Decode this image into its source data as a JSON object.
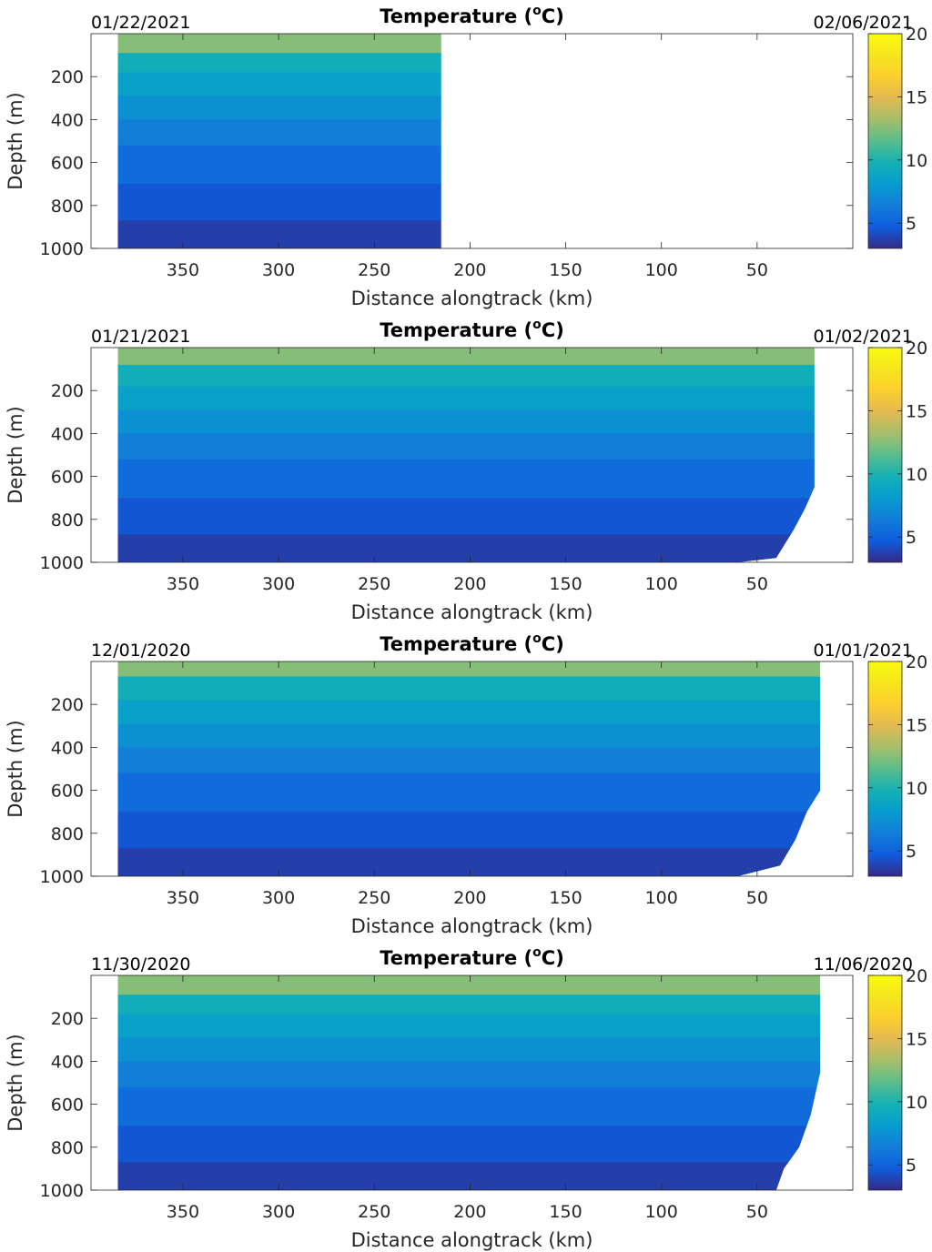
{
  "chart_data": [
    {
      "type": "heatmap",
      "title": "Temperature (°C)",
      "title_base": "Temperature (",
      "title_sup": "o",
      "title_tail": "C)",
      "xlabel": "Distance alongtrack (km)",
      "ylabel": "Depth (m)",
      "start_date": "01/22/2021",
      "end_date": "02/06/2021",
      "xlim": [
        398,
        0
      ],
      "x_reversed": true,
      "ylim": [
        0,
        1000
      ],
      "y_reversed": true,
      "xticks": [
        350,
        300,
        250,
        200,
        150,
        100,
        50
      ],
      "yticks": [
        200,
        400,
        600,
        800,
        1000
      ],
      "colorbar": {
        "min": 3,
        "max": 20,
        "ticks": [
          5,
          10,
          15,
          20
        ],
        "colormap": "parula"
      },
      "data_extent_km": [
        384,
        215
      ],
      "bottom_depth_m": [
        [
          384,
          1000
        ],
        [
          215,
          1000
        ]
      ],
      "layers": [
        {
          "top_m": 0,
          "bottom_m": 90,
          "temp_c": 12.5
        },
        {
          "top_m": 90,
          "bottom_m": 180,
          "temp_c": 9.5
        },
        {
          "top_m": 180,
          "bottom_m": 290,
          "temp_c": 8.5
        },
        {
          "top_m": 290,
          "bottom_m": 400,
          "temp_c": 7.5
        },
        {
          "top_m": 400,
          "bottom_m": 520,
          "temp_c": 6.5
        },
        {
          "top_m": 520,
          "bottom_m": 700,
          "temp_c": 5.5
        },
        {
          "top_m": 700,
          "bottom_m": 870,
          "temp_c": 4.5
        },
        {
          "top_m": 870,
          "bottom_m": 1000,
          "temp_c": 3.7
        }
      ]
    },
    {
      "type": "heatmap",
      "title": "Temperature (°C)",
      "title_base": "Temperature (",
      "title_sup": "o",
      "title_tail": "C)",
      "xlabel": "Distance alongtrack (km)",
      "ylabel": "Depth (m)",
      "start_date": "01/21/2021",
      "end_date": "01/02/2021",
      "xlim": [
        398,
        0
      ],
      "x_reversed": true,
      "ylim": [
        0,
        1000
      ],
      "y_reversed": true,
      "xticks": [
        350,
        300,
        250,
        200,
        150,
        100,
        50
      ],
      "yticks": [
        200,
        400,
        600,
        800,
        1000
      ],
      "colorbar": {
        "min": 3,
        "max": 20,
        "ticks": [
          5,
          10,
          15,
          20
        ],
        "colormap": "parula"
      },
      "data_extent_km": [
        384,
        20
      ],
      "bottom_depth_m": [
        [
          384,
          1000
        ],
        [
          60,
          1000
        ],
        [
          40,
          980
        ],
        [
          31,
          850
        ],
        [
          25,
          750
        ],
        [
          20,
          650
        ]
      ],
      "layers": [
        {
          "top_m": 0,
          "bottom_m": 80,
          "temp_c": 12.5
        },
        {
          "top_m": 80,
          "bottom_m": 180,
          "temp_c": 9.5
        },
        {
          "top_m": 180,
          "bottom_m": 290,
          "temp_c": 8.5
        },
        {
          "top_m": 290,
          "bottom_m": 400,
          "temp_c": 7.5
        },
        {
          "top_m": 400,
          "bottom_m": 520,
          "temp_c": 6.5
        },
        {
          "top_m": 520,
          "bottom_m": 700,
          "temp_c": 5.5
        },
        {
          "top_m": 700,
          "bottom_m": 870,
          "temp_c": 4.5
        },
        {
          "top_m": 870,
          "bottom_m": 1000,
          "temp_c": 3.7
        }
      ]
    },
    {
      "type": "heatmap",
      "title": "Temperature (°C)",
      "title_base": "Temperature (",
      "title_sup": "o",
      "title_tail": "C)",
      "xlabel": "Distance alongtrack (km)",
      "ylabel": "Depth (m)",
      "start_date": "12/01/2020",
      "end_date": "01/01/2021",
      "xlim": [
        398,
        0
      ],
      "x_reversed": true,
      "ylim": [
        0,
        1000
      ],
      "y_reversed": true,
      "xticks": [
        350,
        300,
        250,
        200,
        150,
        100,
        50
      ],
      "yticks": [
        200,
        400,
        600,
        800,
        1000
      ],
      "colorbar": {
        "min": 3,
        "max": 20,
        "ticks": [
          5,
          10,
          15,
          20
        ],
        "colormap": "parula"
      },
      "data_extent_km": [
        384,
        17
      ],
      "bottom_depth_m": [
        [
          384,
          1000
        ],
        [
          60,
          1000
        ],
        [
          38,
          950
        ],
        [
          30,
          830
        ],
        [
          24,
          700
        ],
        [
          17,
          600
        ]
      ],
      "layers": [
        {
          "top_m": 0,
          "bottom_m": 70,
          "temp_c": 12.5
        },
        {
          "top_m": 70,
          "bottom_m": 180,
          "temp_c": 9.5
        },
        {
          "top_m": 180,
          "bottom_m": 290,
          "temp_c": 8.5
        },
        {
          "top_m": 290,
          "bottom_m": 400,
          "temp_c": 7.5
        },
        {
          "top_m": 400,
          "bottom_m": 520,
          "temp_c": 6.5
        },
        {
          "top_m": 520,
          "bottom_m": 700,
          "temp_c": 5.5
        },
        {
          "top_m": 700,
          "bottom_m": 870,
          "temp_c": 4.5
        },
        {
          "top_m": 870,
          "bottom_m": 1000,
          "temp_c": 3.7
        }
      ]
    },
    {
      "type": "heatmap",
      "title": "Temperature (°C)",
      "title_base": "Temperature (",
      "title_sup": "o",
      "title_tail": "C)",
      "xlabel": "Distance alongtrack (km)",
      "ylabel": "Depth (m)",
      "start_date": "11/30/2020",
      "end_date": "11/06/2020",
      "xlim": [
        398,
        0
      ],
      "x_reversed": true,
      "ylim": [
        0,
        1000
      ],
      "y_reversed": true,
      "xticks": [
        350,
        300,
        250,
        200,
        150,
        100,
        50
      ],
      "yticks": [
        200,
        400,
        600,
        800,
        1000
      ],
      "colorbar": {
        "min": 3,
        "max": 20,
        "ticks": [
          5,
          10,
          15,
          20
        ],
        "colormap": "parula"
      },
      "data_extent_km": [
        384,
        17
      ],
      "bottom_depth_m": [
        [
          384,
          1000
        ],
        [
          40,
          1000
        ],
        [
          36,
          900
        ],
        [
          28,
          800
        ],
        [
          22,
          650
        ],
        [
          17,
          450
        ]
      ],
      "layers": [
        {
          "top_m": 0,
          "bottom_m": 90,
          "temp_c": 12.5
        },
        {
          "top_m": 90,
          "bottom_m": 180,
          "temp_c": 9.5
        },
        {
          "top_m": 180,
          "bottom_m": 290,
          "temp_c": 8.5
        },
        {
          "top_m": 290,
          "bottom_m": 400,
          "temp_c": 7.5
        },
        {
          "top_m": 400,
          "bottom_m": 520,
          "temp_c": 6.5
        },
        {
          "top_m": 520,
          "bottom_m": 700,
          "temp_c": 5.5
        },
        {
          "top_m": 700,
          "bottom_m": 870,
          "temp_c": 4.5
        },
        {
          "top_m": 870,
          "bottom_m": 1000,
          "temp_c": 3.7
        }
      ]
    }
  ]
}
